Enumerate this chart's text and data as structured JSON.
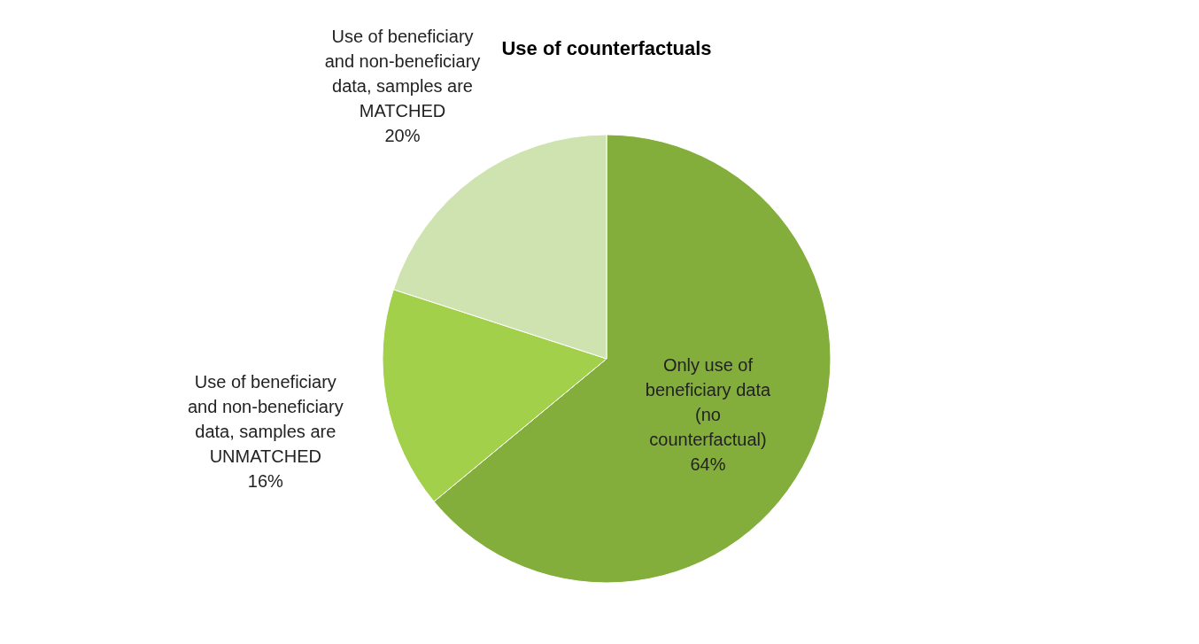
{
  "chart_data": {
    "type": "pie",
    "title": "Use of counterfactuals",
    "categories": [
      "Only  use of\nbeneficiary data\n(no\ncounterfactual)",
      "Use of  beneficiary\nand non-beneficiary\ndata, samples are\nUNMATCHED",
      "Use of beneficiary\nand non-beneficiary\ndata, samples are\nMATCHED"
    ],
    "values": [
      64,
      16,
      20
    ],
    "value_labels": [
      "64%",
      "16%",
      "20%"
    ],
    "colors": [
      "#84ae3c",
      "#a3d04a",
      "#cfe3b0"
    ]
  }
}
